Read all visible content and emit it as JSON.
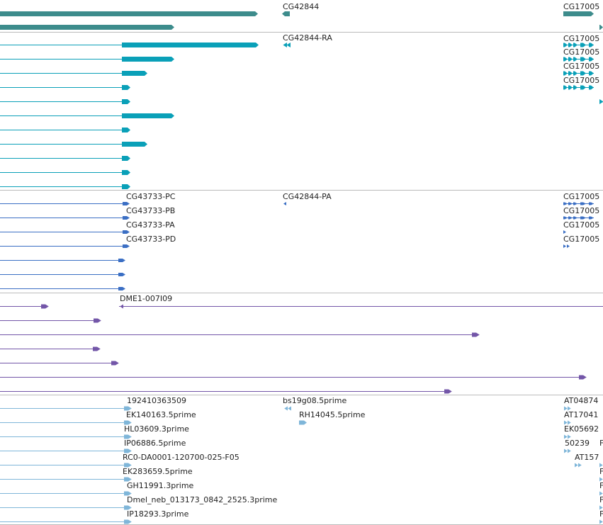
{
  "colors": {
    "gene": "#3d8c8c",
    "mrna": "#0aa0b8",
    "protein": "#3b6fc4",
    "cdna": "#7356a8",
    "est": "#7fb6d9",
    "divider": "#bbbbbb"
  },
  "tracks": [
    {
      "id": "gene",
      "labels": [
        "CG42844",
        "CG17005"
      ],
      "features": [
        {
          "kind": "block",
          "row": 0,
          "start": 0,
          "end": 364,
          "strand": "+"
        },
        {
          "kind": "block",
          "row": 1,
          "start": 0,
          "end": 246,
          "strand": "+"
        },
        {
          "kind": "block",
          "row": 0,
          "start": 398,
          "end": 409,
          "strand": "-"
        },
        {
          "kind": "block",
          "row": 0,
          "start": 795,
          "end": 838,
          "strand": "+"
        },
        {
          "kind": "block",
          "row": 1,
          "start": 846,
          "end": 851,
          "strand": "+"
        }
      ]
    },
    {
      "id": "mrna",
      "labels": [
        "CG42844-RA",
        "CG17005",
        "CG17005",
        "CG17005",
        "CG17005"
      ],
      "features": [
        {
          "kind": "model",
          "row": 0,
          "start": 0,
          "end": 365,
          "cds": [
            172,
            365
          ],
          "strand": "+"
        },
        {
          "kind": "model",
          "row": 1,
          "start": 0,
          "end": 246,
          "cds": [
            172,
            246
          ],
          "strand": "+"
        },
        {
          "kind": "model",
          "row": 2,
          "start": 0,
          "end": 208,
          "cds": [
            172,
            208
          ],
          "strand": "+"
        },
        {
          "kind": "model",
          "row": 3,
          "start": 0,
          "end": 184,
          "cds": [
            172,
            184
          ],
          "strand": "+"
        },
        {
          "kind": "model",
          "row": 4,
          "start": 0,
          "end": 184,
          "cds": [
            172,
            184
          ],
          "strand": "+"
        },
        {
          "kind": "model",
          "row": 5,
          "start": 0,
          "end": 246,
          "cds": [
            172,
            246
          ],
          "strand": "+"
        },
        {
          "kind": "model",
          "row": 6,
          "start": 0,
          "end": 184,
          "cds": [
            172,
            184
          ],
          "strand": "+"
        },
        {
          "kind": "model",
          "row": 7,
          "start": 0,
          "end": 208,
          "cds": [
            172,
            208
          ],
          "strand": "+"
        },
        {
          "kind": "model",
          "row": 8,
          "start": 0,
          "end": 184,
          "cds": [
            172,
            184
          ],
          "strand": "+"
        },
        {
          "kind": "model",
          "row": 9,
          "start": 0,
          "end": 184,
          "cds": [
            172,
            184
          ],
          "strand": "+"
        },
        {
          "kind": "model",
          "row": 10,
          "start": 0,
          "end": 184,
          "cds": [
            172,
            184
          ],
          "strand": "+"
        },
        {
          "kind": "arrows",
          "row": 0,
          "start": 398,
          "end": 410,
          "strand": "-"
        },
        {
          "kind": "arrows",
          "row": 0,
          "start": 795,
          "end": 838,
          "strand": "+"
        },
        {
          "kind": "arrows",
          "row": 1,
          "start": 795,
          "end": 838,
          "strand": "+"
        },
        {
          "kind": "arrows",
          "row": 2,
          "start": 795,
          "end": 838,
          "strand": "+"
        },
        {
          "kind": "arrows",
          "row": 3,
          "start": 795,
          "end": 838,
          "strand": "+"
        },
        {
          "kind": "arrows",
          "row": 4,
          "start": 846,
          "end": 851,
          "strand": "+"
        }
      ]
    },
    {
      "id": "protein",
      "labels": [
        "CG43733-PC",
        "CG43733-PB",
        "CG43733-PA",
        "CG43733-PD",
        "CG42844-PA",
        "CG17005",
        "CG17005",
        "CG17005",
        "CG17005"
      ],
      "features": [
        {
          "kind": "line",
          "row": 0,
          "start": 0,
          "end": 182,
          "strand": "+"
        },
        {
          "kind": "line",
          "row": 1,
          "start": 0,
          "end": 182,
          "strand": "+"
        },
        {
          "kind": "line",
          "row": 2,
          "start": 0,
          "end": 182,
          "strand": "+"
        },
        {
          "kind": "line",
          "row": 3,
          "start": 0,
          "end": 182,
          "strand": "+"
        },
        {
          "kind": "line",
          "row": 4,
          "start": 0,
          "end": 176,
          "strand": "+"
        },
        {
          "kind": "line",
          "row": 5,
          "start": 0,
          "end": 176,
          "strand": "+"
        },
        {
          "kind": "line",
          "row": 6,
          "start": 0,
          "end": 176,
          "strand": "+"
        },
        {
          "kind": "arrows",
          "row": 0,
          "start": 399,
          "end": 404,
          "strand": "-"
        },
        {
          "kind": "arrows",
          "row": 0,
          "start": 795,
          "end": 838,
          "strand": "+"
        },
        {
          "kind": "arrows",
          "row": 1,
          "start": 795,
          "end": 838,
          "strand": "+"
        },
        {
          "kind": "arrows",
          "row": 2,
          "start": 795,
          "end": 801,
          "strand": "+"
        },
        {
          "kind": "arrows",
          "row": 3,
          "start": 795,
          "end": 806,
          "strand": "+"
        }
      ]
    },
    {
      "id": "cdna",
      "labels": [
        "DME1-007I09"
      ],
      "features": [
        {
          "kind": "line",
          "row": 0,
          "start": 0,
          "end": 67,
          "strand": "+"
        },
        {
          "kind": "line",
          "row": 0,
          "start": 168,
          "end": 851,
          "strand": "-"
        },
        {
          "kind": "line",
          "row": 1,
          "start": 0,
          "end": 141,
          "strand": "+"
        },
        {
          "kind": "line",
          "row": 2,
          "start": 0,
          "end": 675,
          "strand": "+"
        },
        {
          "kind": "line",
          "row": 3,
          "start": 0,
          "end": 140,
          "strand": "+"
        },
        {
          "kind": "line",
          "row": 4,
          "start": 0,
          "end": 166,
          "strand": "+"
        },
        {
          "kind": "line",
          "row": 5,
          "start": 0,
          "end": 826,
          "strand": "+"
        },
        {
          "kind": "line",
          "row": 6,
          "start": 0,
          "end": 636,
          "strand": "+"
        }
      ]
    },
    {
      "id": "est",
      "labels": [
        "192410363509",
        "EK140163.5prime",
        "HL03609.3prime",
        "IP06886.5prime",
        "RC0-DA0001-120700-025-F05",
        "EK283659.5prime",
        "GH11991.3prime",
        "Dmel_neb_013173_0842_2525.3prime",
        "IP18293.3prime",
        "bs19g08.5prime",
        "RH14045.5prime",
        "AT04874",
        "AT17041",
        "EK05692",
        "50239",
        "AT157",
        "F",
        "F",
        "F",
        "F",
        "F"
      ],
      "features": [
        {
          "kind": "line",
          "row": 0,
          "start": 0,
          "end": 184,
          "strand": "+"
        },
        {
          "kind": "line",
          "row": 1,
          "start": 0,
          "end": 184,
          "strand": "+"
        },
        {
          "kind": "line",
          "row": 2,
          "start": 0,
          "end": 184,
          "strand": "+"
        },
        {
          "kind": "line",
          "row": 3,
          "start": 0,
          "end": 184,
          "strand": "+"
        },
        {
          "kind": "line",
          "row": 4,
          "start": 0,
          "end": 184,
          "strand": "+"
        },
        {
          "kind": "line",
          "row": 5,
          "start": 0,
          "end": 184,
          "strand": "+"
        },
        {
          "kind": "line",
          "row": 6,
          "start": 0,
          "end": 184,
          "strand": "+"
        },
        {
          "kind": "line",
          "row": 7,
          "start": 0,
          "end": 184,
          "strand": "+"
        },
        {
          "kind": "line",
          "row": 8,
          "start": 0,
          "end": 184,
          "strand": "+"
        },
        {
          "kind": "arrows",
          "row": 0,
          "start": 399,
          "end": 411,
          "strand": "-"
        },
        {
          "kind": "block",
          "row": 1,
          "start": 422,
          "end": 433,
          "strand": "+"
        },
        {
          "kind": "arrows",
          "row": 0,
          "start": 796,
          "end": 806,
          "strand": "+"
        },
        {
          "kind": "arrows",
          "row": 1,
          "start": 796,
          "end": 806,
          "strand": "+"
        },
        {
          "kind": "arrows",
          "row": 2,
          "start": 796,
          "end": 806,
          "strand": "+"
        },
        {
          "kind": "arrows",
          "row": 3,
          "start": 796,
          "end": 806,
          "strand": "+"
        },
        {
          "kind": "arrows",
          "row": 4,
          "start": 811,
          "end": 822,
          "strand": "+"
        },
        {
          "kind": "arrows",
          "row": 4,
          "start": 846,
          "end": 851,
          "strand": "+"
        },
        {
          "kind": "arrows",
          "row": 5,
          "start": 846,
          "end": 851,
          "strand": "+"
        },
        {
          "kind": "arrows",
          "row": 6,
          "start": 846,
          "end": 851,
          "strand": "+"
        },
        {
          "kind": "arrows",
          "row": 7,
          "start": 846,
          "end": 851,
          "strand": "+"
        },
        {
          "kind": "arrows",
          "row": 8,
          "start": 846,
          "end": 851,
          "strand": "+"
        }
      ]
    }
  ]
}
